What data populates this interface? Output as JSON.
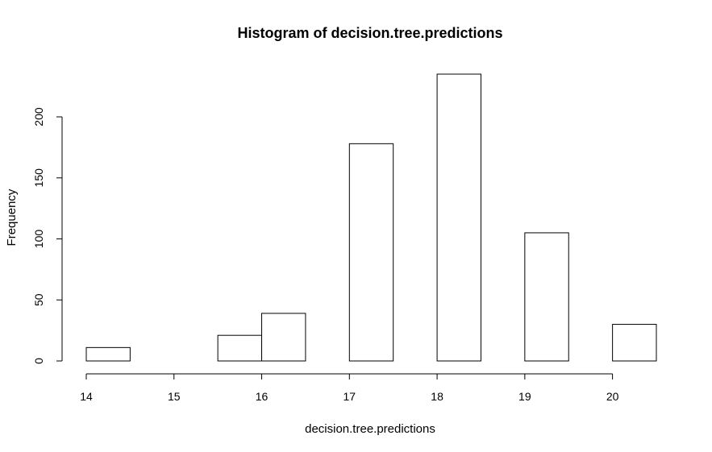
{
  "chart_data": {
    "type": "bar",
    "title": "Histogram of decision.tree.predictions",
    "xlabel": "decision.tree.predictions",
    "ylabel": "Frequency",
    "bins": [
      {
        "start": 14.0,
        "end": 14.5,
        "count": 11
      },
      {
        "start": 14.5,
        "end": 15.0,
        "count": 0
      },
      {
        "start": 15.0,
        "end": 15.5,
        "count": 0
      },
      {
        "start": 15.5,
        "end": 16.0,
        "count": 21
      },
      {
        "start": 16.0,
        "end": 16.5,
        "count": 39
      },
      {
        "start": 16.5,
        "end": 17.0,
        "count": 0
      },
      {
        "start": 17.0,
        "end": 17.5,
        "count": 178
      },
      {
        "start": 17.5,
        "end": 18.0,
        "count": 0
      },
      {
        "start": 18.0,
        "end": 18.5,
        "count": 235
      },
      {
        "start": 18.5,
        "end": 19.0,
        "count": 0
      },
      {
        "start": 19.0,
        "end": 19.5,
        "count": 105
      },
      {
        "start": 19.5,
        "end": 20.0,
        "count": 0
      },
      {
        "start": 20.0,
        "end": 20.5,
        "count": 30
      }
    ],
    "x_ticks": [
      14,
      15,
      16,
      17,
      18,
      19,
      20
    ],
    "y_ticks": [
      0,
      50,
      100,
      150,
      200
    ],
    "xlim": [
      14,
      20.5
    ],
    "ylim": [
      0,
      235
    ],
    "grid": false,
    "legend": "none",
    "bar_fill": "#ffffff",
    "bar_stroke": "#000000"
  }
}
